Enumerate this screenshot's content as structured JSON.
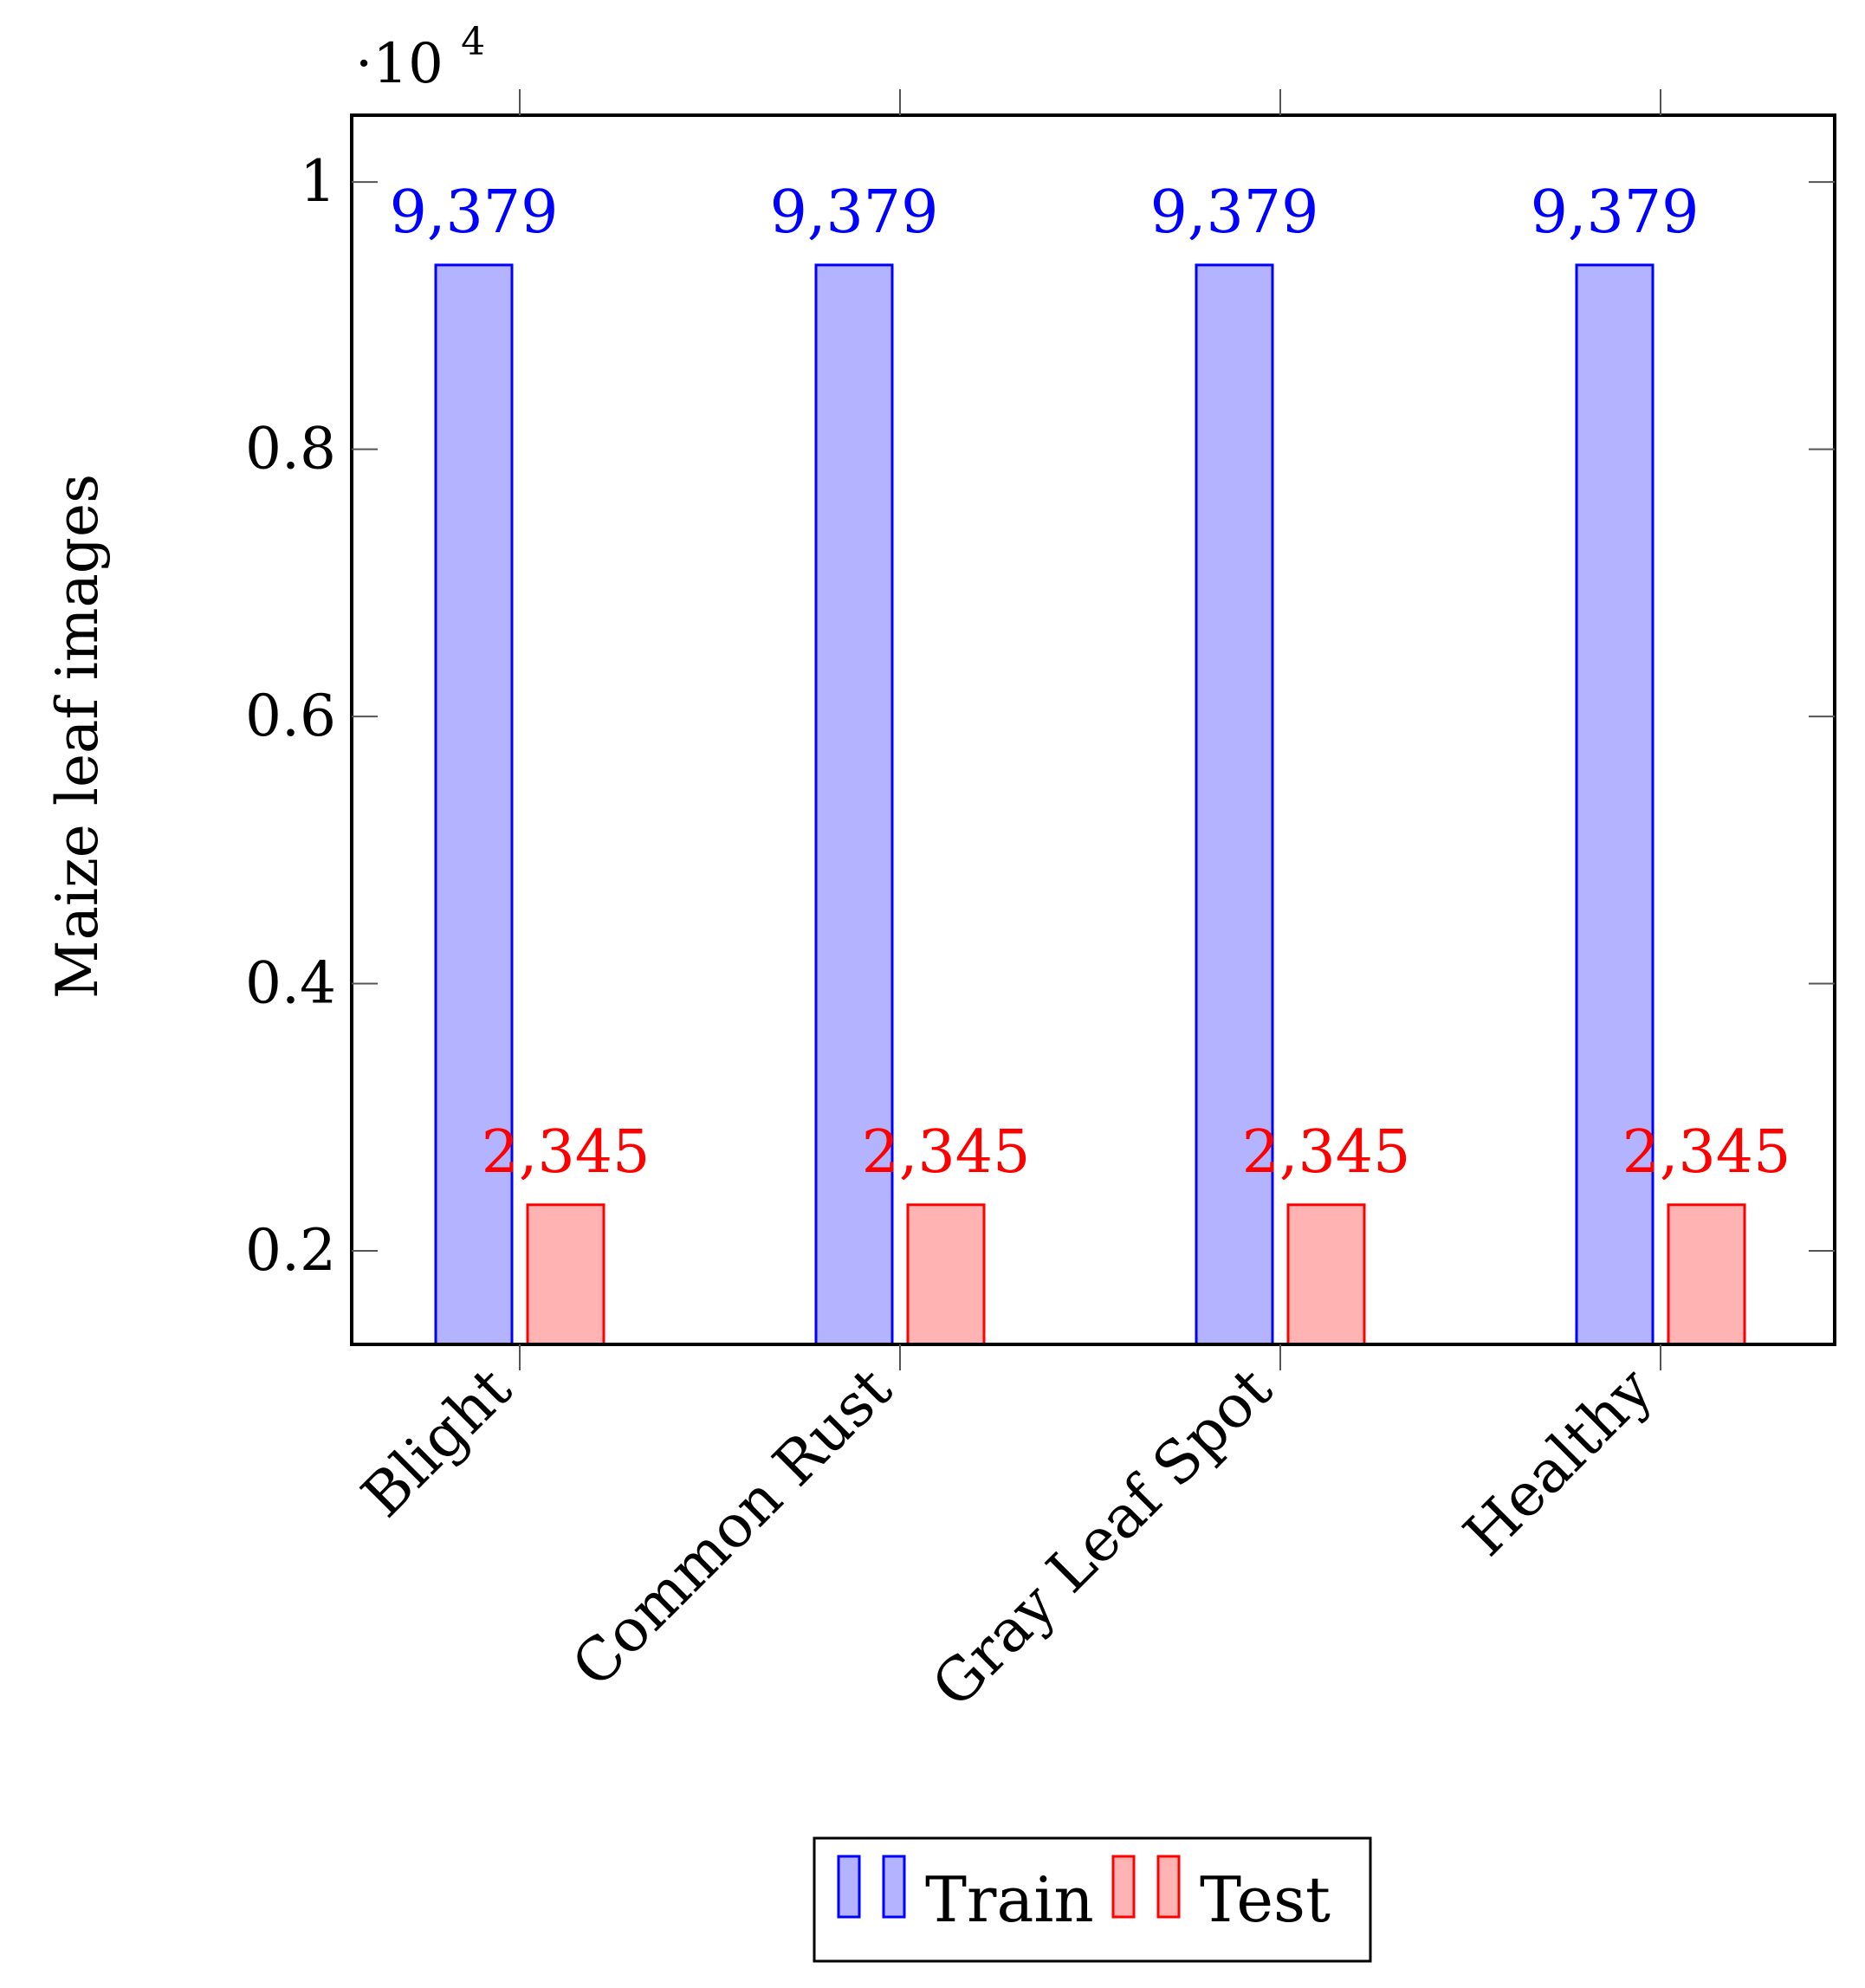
{
  "chart_data": {
    "type": "bar",
    "title": "",
    "xlabel": "",
    "ylabel": "Maize leaf images",
    "y_scale_label": "·10",
    "y_scale_exponent": "4",
    "categories": [
      "Blight",
      "Common Rust",
      "Gray Leaf Spot",
      "Healthy"
    ],
    "series": [
      {
        "name": "Train",
        "values": [
          9379,
          9379,
          9379,
          9379
        ],
        "labels": [
          "9,379",
          "9,379",
          "9,379",
          "9,379"
        ],
        "color": "#0000ff",
        "fill": "#b3b3ff"
      },
      {
        "name": "Test",
        "values": [
          2345,
          2345,
          2345,
          2345
        ],
        "labels": [
          "2,345",
          "2,345",
          "2,345",
          "2,345"
        ],
        "color": "#ff0000",
        "fill": "#ffb3b3"
      }
    ],
    "ylim": [
      1300,
      10500
    ],
    "yticks": [
      2000,
      4000,
      6000,
      8000,
      10000
    ],
    "ytick_labels": [
      "0.2",
      "0.4",
      "0.6",
      "0.8",
      "1"
    ],
    "legend": "bottom-center",
    "grid": false
  }
}
